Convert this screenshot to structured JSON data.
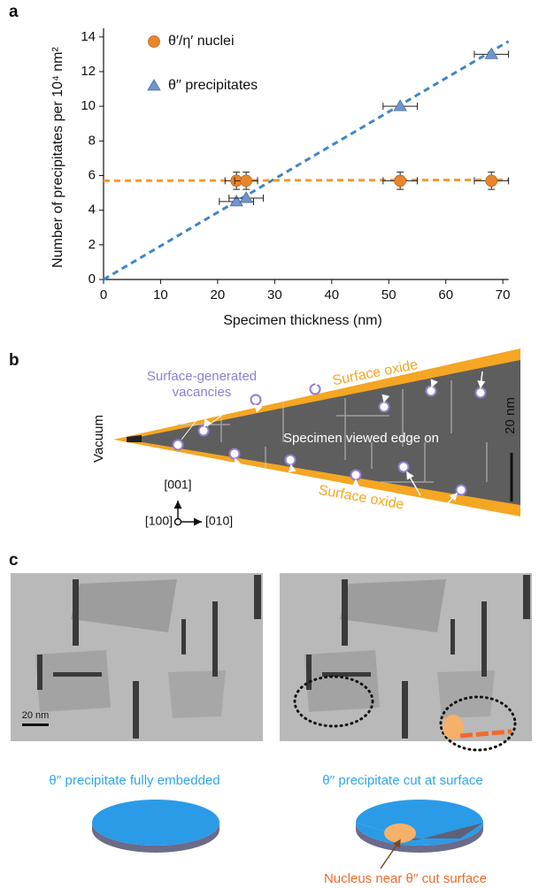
{
  "chart_data": {
    "type": "scatter",
    "panel_label": "a",
    "xlabel": "Specimen thickness (nm)",
    "ylabel": "Number of precipitates per 10⁴ nm²",
    "xlim": [
      0,
      71
    ],
    "ylim": [
      0,
      14.5
    ],
    "xticks": [
      0,
      10,
      20,
      30,
      40,
      50,
      60,
      70
    ],
    "yticks": [
      0,
      2,
      4,
      6,
      8,
      10,
      12,
      14
    ],
    "series": [
      {
        "name": "θ′/η′ nuclei",
        "color": "#e8862e",
        "marker": "circle",
        "x": [
          23.3,
          25,
          52,
          68
        ],
        "values": [
          5.7,
          5.7,
          5.7,
          5.7
        ],
        "x_err": [
          2,
          2,
          3,
          3
        ],
        "y_err": [
          0.5,
          0.5,
          0.5,
          0.5
        ]
      },
      {
        "name": "θ′′ precipitates",
        "color": "#6f95cc",
        "marker": "triangle",
        "x": [
          23.3,
          25,
          52,
          68
        ],
        "values": [
          4.5,
          4.7,
          10,
          13
        ],
        "x_err": [
          3,
          3,
          3,
          3
        ]
      }
    ],
    "trend_lines": [
      {
        "color": "#3f86c8",
        "x": [
          0,
          71
        ],
        "values": [
          0,
          13.75
        ]
      },
      {
        "color": "#f29a2e",
        "x": [
          0,
          71
        ],
        "values": [
          5.7,
          5.75
        ]
      }
    ]
  },
  "panel_b": {
    "label": "b",
    "vacancies": "Surface-generated",
    "vacancies_2": "vacancies",
    "oxide_top": "Surface oxide",
    "oxide_bottom": "Surface oxide",
    "vacuum": "Vacuum",
    "specimen": "Specimen viewed edge on",
    "scale_bar": "20 nm",
    "axis_up": "[001]",
    "axis_in": "[100]",
    "axis_right": "[010]"
  },
  "panel_c": {
    "label": "c",
    "scale_bar": "20 nm",
    "left_caption": "θ′′ precipitate fully embedded",
    "right_caption": "θ′′ precipitate cut at surface",
    "nucleus_caption": "Nucleus near θ′′ cut surface"
  }
}
